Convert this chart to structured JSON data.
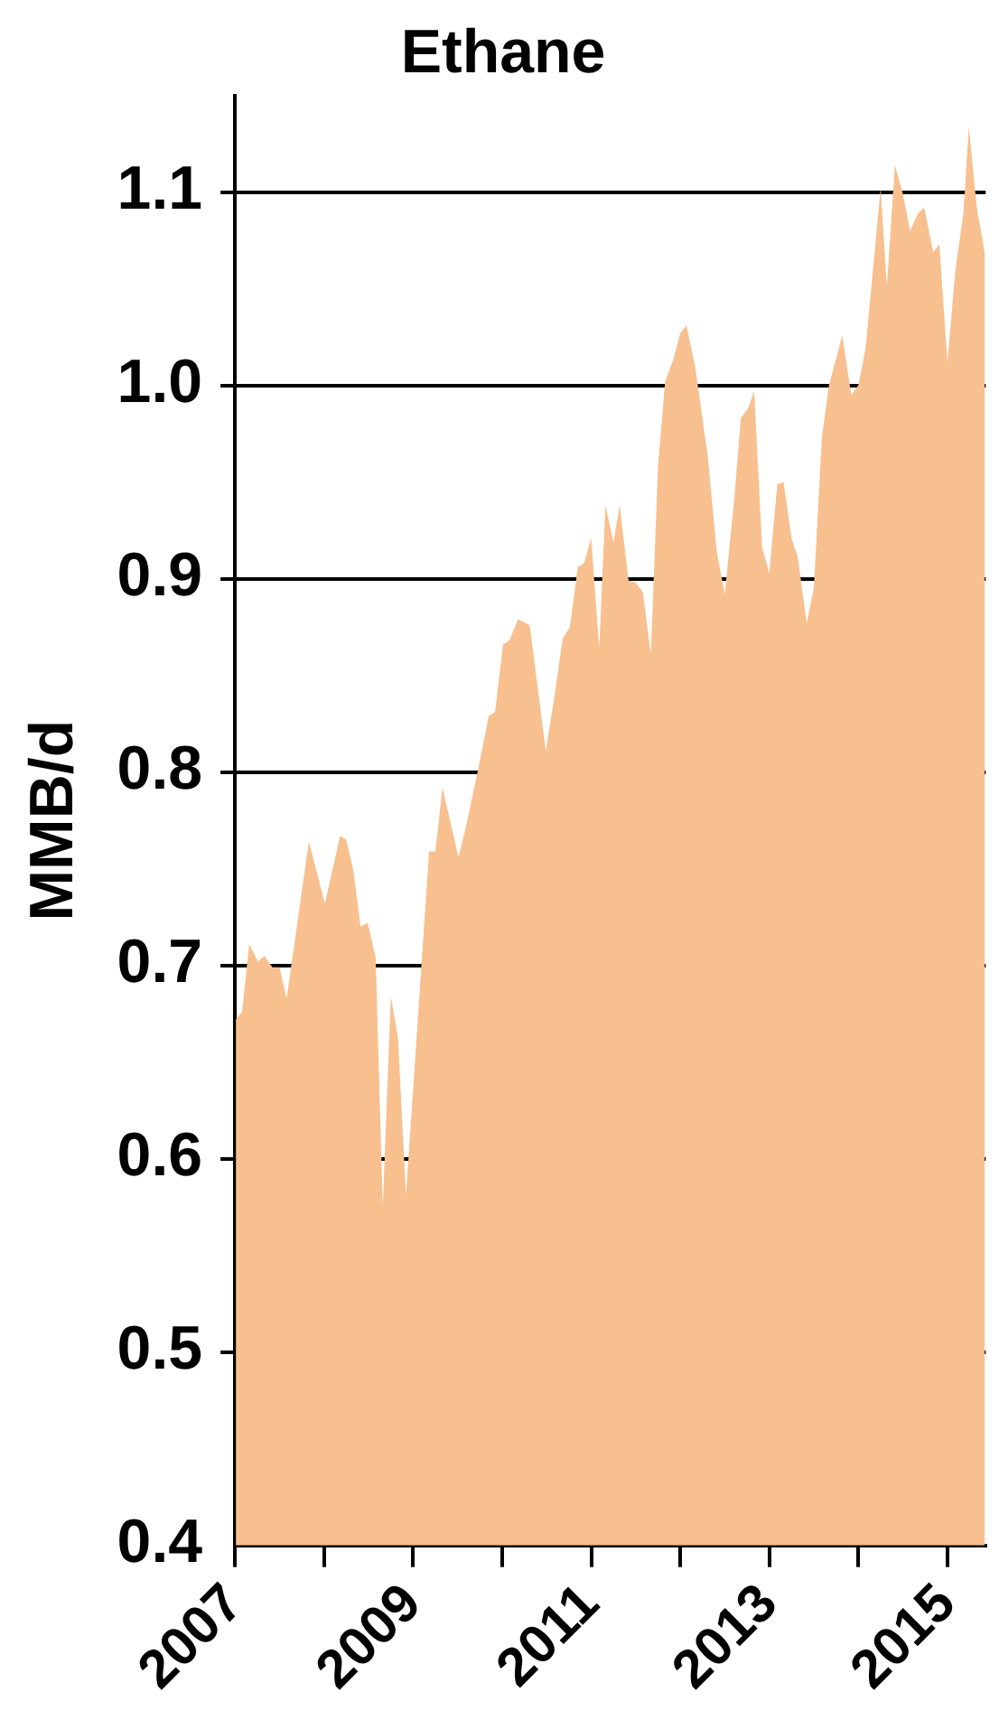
{
  "chart_data": {
    "type": "area",
    "title": "Ethane",
    "ylabel": "MMB/d",
    "x": [
      2007.01,
      2007.08,
      2007.16,
      2007.26,
      2007.33,
      2007.42,
      2007.5,
      2007.58,
      2007.83,
      2008.01,
      2008.18,
      2008.25,
      2008.33,
      2008.41,
      2008.49,
      2008.58,
      2008.66,
      2008.75,
      2008.83,
      2008.92,
      2009.18,
      2009.25,
      2009.33,
      2009.51,
      2009.59,
      2009.72,
      2009.85,
      2009.92,
      2010.01,
      2010.08,
      2010.18,
      2010.31,
      2010.49,
      2010.58,
      2010.68,
      2010.76,
      2010.85,
      2010.92,
      2011.0,
      2011.09,
      2011.16,
      2011.25,
      2011.32,
      2011.42,
      2011.5,
      2011.58,
      2011.67,
      2011.75,
      2011.83,
      2011.92,
      2012.0,
      2012.07,
      2012.17,
      2012.31,
      2012.41,
      2012.5,
      2012.61,
      2012.68,
      2012.76,
      2012.83,
      2012.92,
      2013.0,
      2013.09,
      2013.16,
      2013.25,
      2013.32,
      2013.42,
      2013.5,
      2013.59,
      2013.67,
      2013.82,
      2013.92,
      2014.0,
      2014.08,
      2014.15,
      2014.25,
      2014.32,
      2014.41,
      2014.5,
      2014.58,
      2014.67,
      2014.74,
      2014.84,
      2014.91,
      2015.0,
      2015.09,
      2015.18,
      2015.24,
      2015.33,
      2015.42
    ],
    "series": [
      {
        "color": "#f8c08f",
        "values": [
          0.672,
          0.676,
          0.711,
          0.702,
          0.705,
          0.699,
          0.699,
          0.683,
          0.764,
          0.732,
          0.767,
          0.765,
          0.749,
          0.72,
          0.722,
          0.704,
          0.575,
          0.684,
          0.663,
          0.581,
          0.759,
          0.759,
          0.792,
          0.756,
          0.771,
          0.799,
          0.829,
          0.831,
          0.866,
          0.868,
          0.879,
          0.876,
          0.811,
          0.837,
          0.869,
          0.875,
          0.906,
          0.908,
          0.921,
          0.864,
          0.938,
          0.919,
          0.938,
          0.899,
          0.898,
          0.893,
          0.861,
          0.958,
          1.002,
          1.013,
          1.027,
          1.031,
          1.009,
          0.963,
          0.914,
          0.892,
          0.943,
          0.983,
          0.988,
          0.997,
          0.916,
          0.903,
          0.949,
          0.95,
          0.921,
          0.911,
          0.877,
          0.895,
          0.973,
          1.0,
          1.026,
          0.995,
          1.0,
          1.019,
          1.053,
          1.102,
          1.051,
          1.114,
          1.099,
          1.08,
          1.089,
          1.092,
          1.069,
          1.073,
          1.012,
          1.06,
          1.089,
          1.134,
          1.092,
          1.068
        ]
      }
    ],
    "xlim": [
      2007,
      2015.43
    ],
    "xticks": [
      2007,
      {
        "value": 2008,
        "label": null
      },
      2009,
      {
        "value": 2010,
        "label": null
      },
      2011,
      {
        "value": 2012,
        "label": null
      },
      2013,
      {
        "value": 2014,
        "label": null
      },
      2015
    ],
    "ylim": [
      0.4,
      1.15
    ],
    "yticks": [
      {
        "value": 0.4,
        "label": "0.4"
      },
      {
        "value": 0.5,
        "label": "0.5"
      },
      {
        "value": 0.6,
        "label": "0.6"
      },
      {
        "value": 0.7,
        "label": "0.7"
      },
      {
        "value": 0.8,
        "label": "0.8"
      },
      {
        "value": 0.9,
        "label": "0.9"
      },
      {
        "value": 1.0,
        "label": "1.0"
      },
      {
        "value": 1.1,
        "label": "1.1"
      }
    ],
    "grid": "y",
    "legend": false
  }
}
